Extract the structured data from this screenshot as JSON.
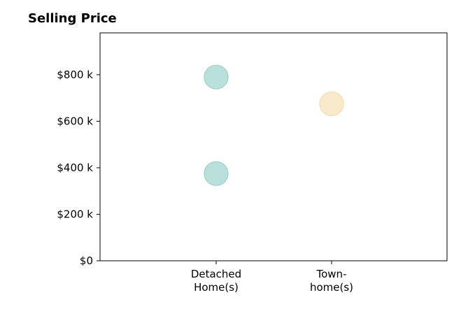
{
  "chart_data": {
    "type": "scatter",
    "title": "Selling Price",
    "xlabel": "",
    "ylabel": "",
    "categories": [
      [
        "Detached",
        "Home(s)"
      ],
      [
        "Town-",
        "home(s)"
      ]
    ],
    "ylim": [
      0,
      980
    ],
    "y_ticks": [
      0,
      200,
      400,
      600,
      800
    ],
    "y_tick_labels": [
      "$0",
      "$200 k",
      "$400 k",
      "$600 k",
      "$800 k"
    ],
    "grid": false,
    "points": [
      {
        "category_index": 0,
        "value": 790,
        "color": "#b3ddd8"
      },
      {
        "category_index": 0,
        "value": 375,
        "color": "#b3ddd8"
      },
      {
        "category_index": 1,
        "value": 675,
        "color": "#f8e8c6"
      }
    ],
    "colors": {
      "detached": "#b3ddd8",
      "detached_edge": "#9fcfc9",
      "townhome": "#f8e8c6",
      "townhome_edge": "#f0dcb2"
    }
  }
}
